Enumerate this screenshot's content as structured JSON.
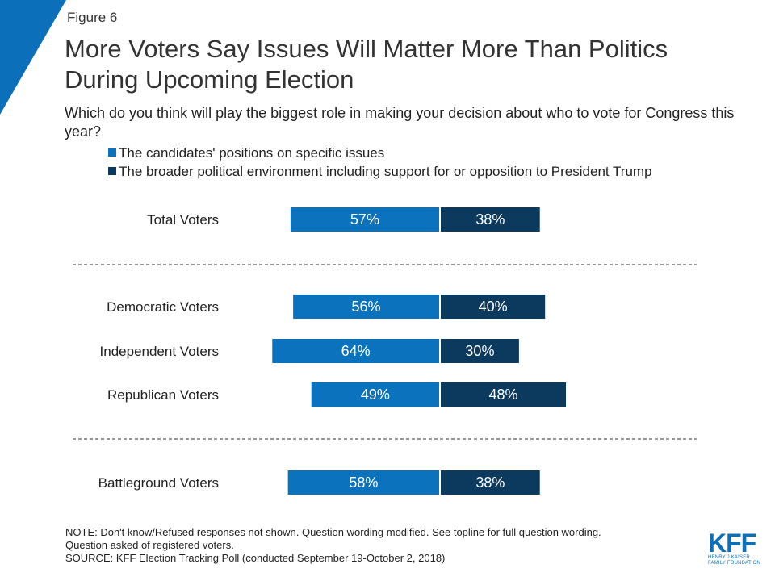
{
  "figure_label": "Figure 6",
  "title": "More Voters Say Issues Will Matter More Than Politics During Upcoming Election",
  "subtitle": "Which do you think will play the biggest role in making your decision about who to vote for Congress this year?",
  "colors": {
    "accent": "#0b70b9",
    "series_issues": "#0b72bd",
    "series_environment": "#0c3a5f",
    "divider": "#333333"
  },
  "notes": {
    "line1": "NOTE: Don't know/Refused responses not shown. Question wording modified. See topline for full question wording.",
    "line2": "Question asked of registered voters.",
    "source": "SOURCE: KFF Election Tracking Poll (conducted September 19-October 2, 2018)"
  },
  "logo": {
    "mark": "KFF",
    "line1": "HENRY J KAISER",
    "line2": "FAMILY FOUNDATION"
  },
  "chart_data": {
    "type": "bar",
    "orientation": "horizontal-diverging",
    "categories": [
      "Total Voters",
      "Democratic Voters",
      "Independent Voters",
      "Republican Voters",
      "Battleground Voters"
    ],
    "groups": [
      [
        "Total Voters"
      ],
      [
        "Democratic Voters",
        "Independent Voters",
        "Republican Voters"
      ],
      [
        "Battleground Voters"
      ]
    ],
    "series": [
      {
        "name": "The candidates' positions on specific issues",
        "values": [
          57,
          56,
          64,
          49,
          58
        ],
        "labels": [
          "57%",
          "56%",
          "64%",
          "49%",
          "58%"
        ]
      },
      {
        "name": "The broader political environment including support for or opposition to President Trump",
        "values": [
          38,
          40,
          30,
          48,
          38
        ],
        "labels": [
          "38%",
          "40%",
          "30%",
          "48%",
          "38%"
        ]
      }
    ],
    "legend_position": "top-left",
    "grid": false
  }
}
